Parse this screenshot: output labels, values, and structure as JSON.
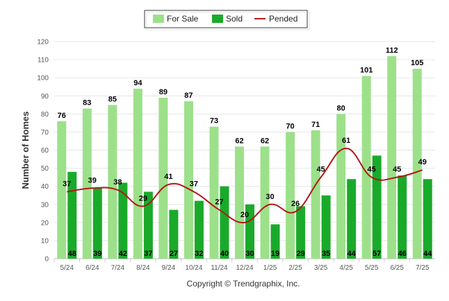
{
  "chart_data": {
    "type": "bar",
    "categories": [
      "5/24",
      "6/24",
      "7/24",
      "8/24",
      "9/24",
      "10/24",
      "11/24",
      "12/24",
      "1/25",
      "2/25",
      "3/25",
      "4/25",
      "5/25",
      "6/25",
      "7/25"
    ],
    "series": [
      {
        "name": "For Sale",
        "type": "bar",
        "color": "#9de08a",
        "values": [
          76,
          83,
          85,
          94,
          89,
          87,
          73,
          62,
          62,
          70,
          71,
          80,
          101,
          112,
          105
        ]
      },
      {
        "name": "Sold",
        "type": "bar",
        "color": "#1aaa2a",
        "values": [
          48,
          39,
          42,
          37,
          27,
          32,
          40,
          30,
          19,
          29,
          35,
          44,
          57,
          46,
          44
        ]
      },
      {
        "name": "Pended",
        "type": "line",
        "color": "#b01818",
        "values": [
          37,
          39,
          38,
          29,
          41,
          37,
          27,
          20,
          30,
          26,
          45,
          61,
          45,
          45,
          49
        ]
      }
    ],
    "ylabel": "Number of Homes",
    "ylim": [
      0,
      120
    ],
    "yticks": [
      0,
      10,
      20,
      30,
      40,
      50,
      60,
      70,
      80,
      90,
      100,
      110,
      120
    ],
    "grid": true,
    "legend_position": "top-center"
  },
  "copyright": "Copyright © Trendgraphix, Inc."
}
